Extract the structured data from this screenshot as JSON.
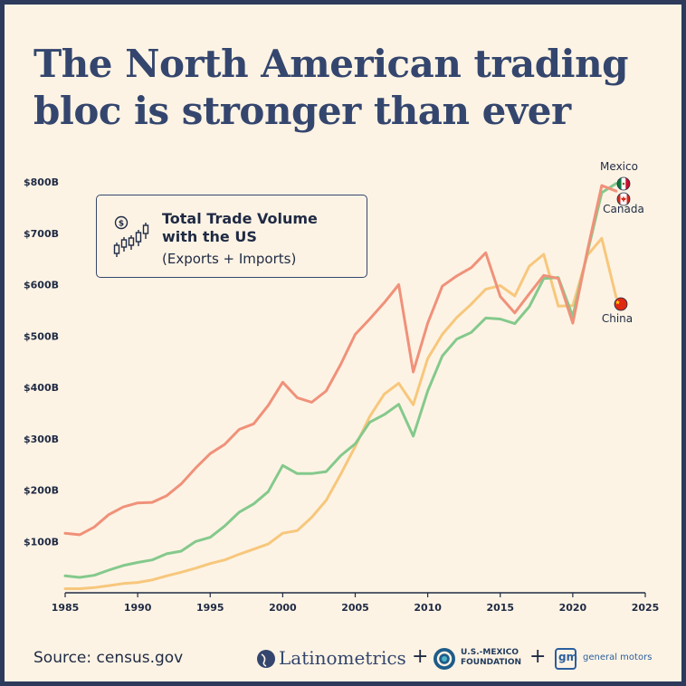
{
  "title": "The North American trading bloc is stronger than ever",
  "legend": {
    "line1": "Total Trade Volume",
    "line2": "with the US",
    "line3": "(Exports + Imports)",
    "icon": "candlestick-dollar-icon"
  },
  "source_label": "Source: census.gov",
  "logos": {
    "latinometrics": "Latinometrics",
    "usmf_line1": "U.S.-MEXICO",
    "usmf_line2": "FOUNDATION",
    "gm_badge": "gm",
    "gm_text": "general motors",
    "plus": "+"
  },
  "colors": {
    "background": "#fdf3e4",
    "frame": "#2d3a5c",
    "title": "#34466e",
    "canada": "#f0917a",
    "mexico": "#84c98c",
    "china": "#f7c77c"
  },
  "chart_data": {
    "type": "line",
    "title": "",
    "xlabel": "",
    "ylabel": "",
    "xlim": [
      1985,
      2025
    ],
    "ylim": [
      0,
      800
    ],
    "x_ticks": [
      1985,
      1990,
      1995,
      2000,
      2005,
      2010,
      2015,
      2020,
      2025
    ],
    "y_ticks": [
      {
        "value": 100,
        "label": "$100B"
      },
      {
        "value": 200,
        "label": "$200B"
      },
      {
        "value": 300,
        "label": "$300B"
      },
      {
        "value": 400,
        "label": "$400B"
      },
      {
        "value": 500,
        "label": "$500B"
      },
      {
        "value": 600,
        "label": "$600B"
      },
      {
        "value": 700,
        "label": "$700B"
      },
      {
        "value": 800,
        "label": "$800B"
      }
    ],
    "grid": false,
    "legend": "top-left",
    "x": [
      1985,
      1986,
      1987,
      1988,
      1989,
      1990,
      1991,
      1992,
      1993,
      1994,
      1995,
      1996,
      1997,
      1998,
      1999,
      2000,
      2001,
      2002,
      2003,
      2004,
      2005,
      2006,
      2007,
      2008,
      2009,
      2010,
      2011,
      2012,
      2013,
      2014,
      2015,
      2016,
      2017,
      2018,
      2019,
      2020,
      2021,
      2022,
      2023
    ],
    "series": [
      {
        "name": "Canada",
        "color": "#f0917a",
        "end_marker": "canada-flag",
        "values": [
          116,
          113,
          128,
          152,
          167,
          175,
          176,
          189,
          212,
          243,
          271,
          289,
          318,
          329,
          365,
          410,
          380,
          371,
          393,
          445,
          503,
          533,
          565,
          600,
          430,
          525,
          597,
          617,
          633,
          662,
          577,
          545,
          582,
          618,
          612,
          525,
          665,
          793,
          782
        ]
      },
      {
        "name": "Mexico",
        "color": "#84c98c",
        "end_marker": "mexico-flag",
        "values": [
          33,
          30,
          34,
          44,
          53,
          59,
          64,
          76,
          81,
          100,
          108,
          130,
          157,
          173,
          197,
          248,
          232,
          232,
          236,
          267,
          290,
          332,
          347,
          367,
          305,
          393,
          461,
          494,
          507,
          535,
          533,
          524,
          557,
          612,
          614,
          538,
          661,
          779,
          797
        ]
      },
      {
        "name": "China",
        "color": "#f7c77c",
        "end_marker": "china-flag",
        "values": [
          8,
          8,
          10,
          14,
          18,
          20,
          25,
          33,
          40,
          48,
          57,
          64,
          75,
          85,
          95,
          116,
          121,
          147,
          180,
          231,
          285,
          343,
          387,
          408,
          366,
          456,
          503,
          536,
          562,
          591,
          598,
          578,
          636,
          659,
          558,
          559,
          657,
          690,
          575
        ]
      }
    ]
  }
}
